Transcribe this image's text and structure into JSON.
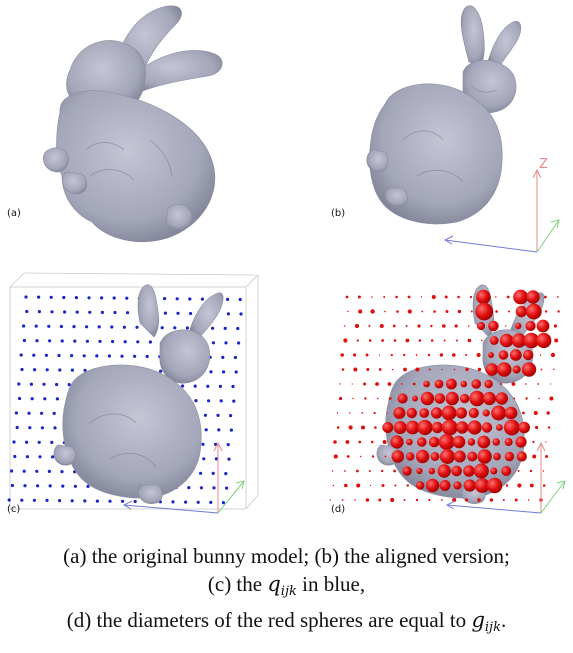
{
  "panels": {
    "a": {
      "label": "(a)"
    },
    "b": {
      "label": "(b)"
    },
    "c": {
      "label": "(c)"
    },
    "d": {
      "label": "(d)"
    }
  },
  "axis_label_z": "Z",
  "colors": {
    "bunny": "#a9abbd",
    "bunny_shade": "#8c8ea3",
    "blue_points": "#1a24c8",
    "red_spheres": "#e01010",
    "axis_blue": "#6f7bd6",
    "axis_green": "#7ed37e",
    "axis_red": "#e58a8a"
  },
  "caption": {
    "line1": "(a) the original bunny model; (b) the aligned version;",
    "line2_pre": "(c) the ",
    "line2_math": "q",
    "line2_sub": "ijk",
    "line2_post": " in blue,",
    "line3_pre": "(d) the diameters of the red spheres are equal to ",
    "line3_math": "g",
    "line3_sub": "ijk",
    "line3_post": "."
  }
}
